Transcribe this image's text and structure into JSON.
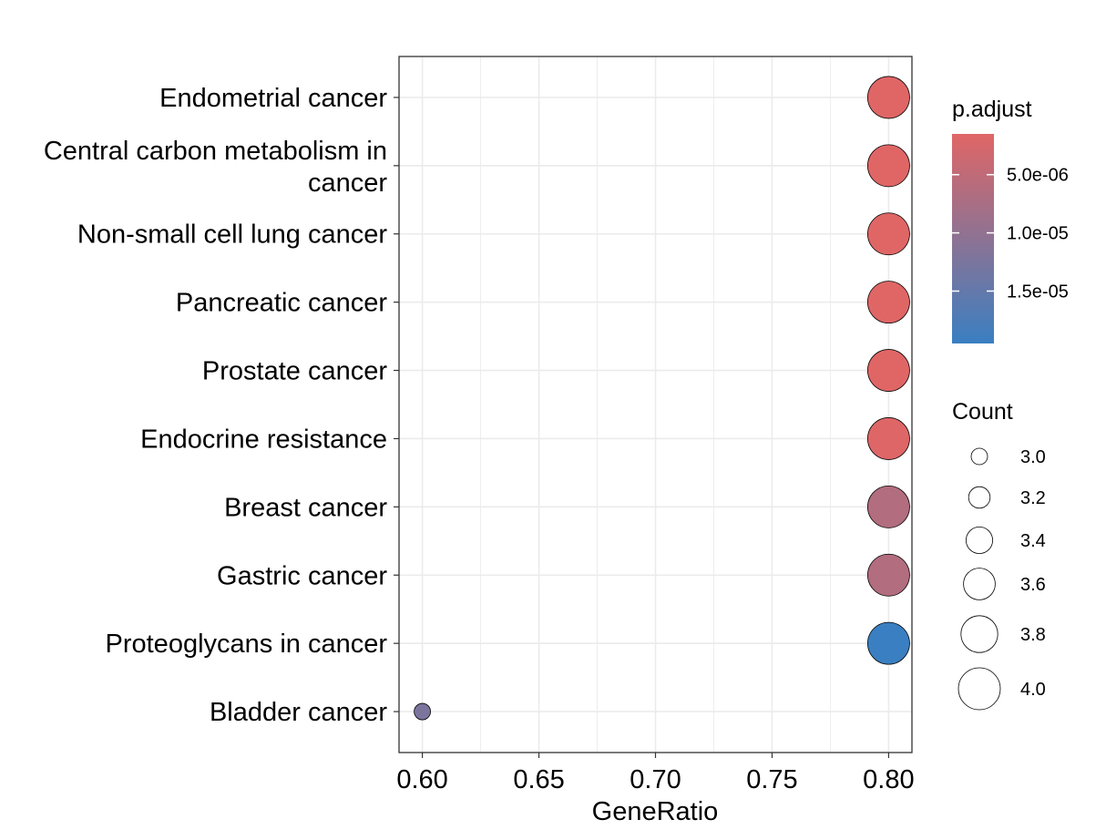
{
  "chart_data": {
    "type": "scatter",
    "xlabel": "GeneRatio",
    "xlim": [
      0.59,
      0.81
    ],
    "xticks": [
      "0.60",
      "0.65",
      "0.70",
      "0.75",
      "0.80"
    ],
    "grid": true,
    "categories": [
      "Endometrial cancer",
      "Central carbon metabolism in cancer",
      "Non-small cell lung cancer",
      "Pancreatic cancer",
      "Prostate cancer",
      "Endocrine resistance",
      "Breast cancer",
      "Gastric cancer",
      "Proteoglycans in cancer",
      "Bladder cancer"
    ],
    "points": [
      {
        "term": "Endometrial cancer",
        "gene_ratio": 0.8,
        "count": 4,
        "p_adjust": 1.5e-06
      },
      {
        "term": "Central carbon metabolism in cancer",
        "gene_ratio": 0.8,
        "count": 4,
        "p_adjust": 1.5e-06
      },
      {
        "term": "Non-small cell lung cancer",
        "gene_ratio": 0.8,
        "count": 4,
        "p_adjust": 1.5e-06
      },
      {
        "term": "Pancreatic cancer",
        "gene_ratio": 0.8,
        "count": 4,
        "p_adjust": 1.5e-06
      },
      {
        "term": "Prostate cancer",
        "gene_ratio": 0.8,
        "count": 4,
        "p_adjust": 1.5e-06
      },
      {
        "term": "Endocrine resistance",
        "gene_ratio": 0.8,
        "count": 4,
        "p_adjust": 1.6e-06
      },
      {
        "term": "Breast cancer",
        "gene_ratio": 0.8,
        "count": 4,
        "p_adjust": 6.5e-06
      },
      {
        "term": "Gastric cancer",
        "gene_ratio": 0.8,
        "count": 4,
        "p_adjust": 6.5e-06
      },
      {
        "term": "Proteoglycans in cancer",
        "gene_ratio": 0.8,
        "count": 4,
        "p_adjust": 1.95e-05
      },
      {
        "term": "Bladder cancer",
        "gene_ratio": 0.6,
        "count": 3,
        "p_adjust": 1.25e-05
      }
    ],
    "color_legend": {
      "title": "p.adjust",
      "range": [
        1.5e-06,
        1.95e-05
      ],
      "low_color": "#E06666",
      "high_color": "#3A7FC1",
      "ticks": [
        {
          "label": "5.0e-06",
          "value": 5e-06
        },
        {
          "label": "1.0e-05",
          "value": 1e-05
        },
        {
          "label": "1.5e-05",
          "value": 1.5e-05
        }
      ]
    },
    "size_legend": {
      "title": "Count",
      "ticks": [
        {
          "label": "3.0",
          "value": 3.0
        },
        {
          "label": "3.2",
          "value": 3.2
        },
        {
          "label": "3.4",
          "value": 3.4
        },
        {
          "label": "3.6",
          "value": 3.6
        },
        {
          "label": "3.8",
          "value": 3.8
        },
        {
          "label": "4.0",
          "value": 4.0
        }
      ]
    }
  }
}
